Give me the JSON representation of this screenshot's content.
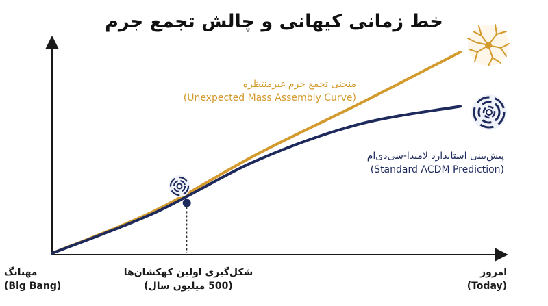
{
  "title": "خط زمانی کیهانی و چالش تجمع جرم",
  "annotations": {
    "gold_fa": "منحنی تجمع جرم غیرمنتظره",
    "gold_en": "(Unexpected Mass Assembly Curve)",
    "navy_fa": "پیش‌بینی استاندارد لامبدا-سی‌دی‌ام",
    "navy_en": "(Standard ΛCDM Prediction)"
  },
  "x_labels": {
    "start_fa": "مهبانگ",
    "start_en": "(Big Bang)",
    "mid_fa": "شکل‌گیری اولین کهکشان‌ها",
    "mid_en": "(500 میلیون سال)",
    "end_fa": "امروز",
    "end_en": "(Today)"
  },
  "colors": {
    "gold": "#d39a2d",
    "navy": "#1f2a5c",
    "axis": "#1a1a1a"
  },
  "icons": [
    "spiral-galaxy-icon",
    "galaxy-network-icon"
  ],
  "chart_data": {
    "type": "line",
    "x": [
      0,
      0.25,
      0.5,
      0.75,
      1.0
    ],
    "x_tick_labels": [
      "(Big Bang) مهبانگ",
      "شکل‌گیری اولین کهکشان‌ها (500 میلیون سال)",
      "(Today) امروز"
    ],
    "xlim": [
      0,
      1
    ],
    "ylim": [
      0,
      1
    ],
    "grid": false,
    "series": [
      {
        "name": "(Unexpected Mass Assembly Curve) منحنی تجمع جرم غیرمنتظره",
        "color": "#d39a2d",
        "values": [
          0,
          0.21,
          0.49,
          0.74,
          1.0
        ]
      },
      {
        "name": "(Standard ΛCDM Prediction) پیش‌بینی استاندارد لامبدا-سی‌دی‌ام",
        "color": "#1f2a5c",
        "values": [
          0,
          0.2,
          0.46,
          0.64,
          0.73
        ]
      }
    ],
    "divergence_point": {
      "x": 0.33,
      "y": 0.25
    }
  }
}
